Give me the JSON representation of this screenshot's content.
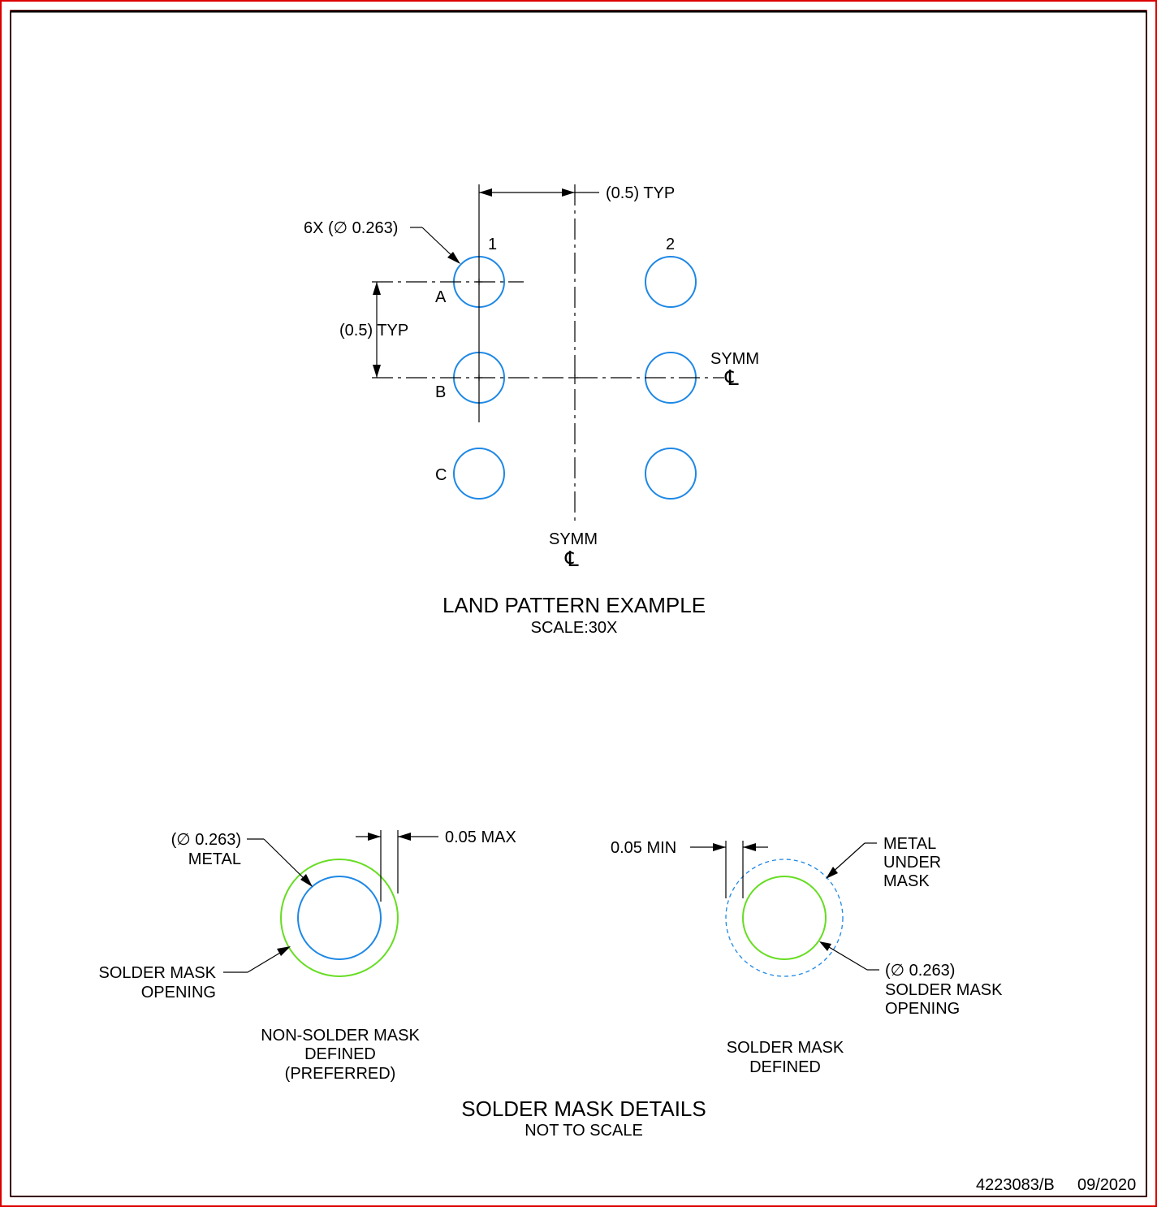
{
  "land_pattern": {
    "title": "LAND PATTERN EXAMPLE",
    "scale": "SCALE:30X",
    "pad_callout": "6X (∅ 0.263)",
    "pitch_x_label": "(0.5) TYP",
    "pitch_y_label": "(0.5) TYP",
    "columns": [
      "1",
      "2"
    ],
    "rows": [
      "A",
      "B",
      "C"
    ],
    "symm_label": "SYMM",
    "centerline_symbol": "℄"
  },
  "solder_mask_details": {
    "title": "SOLDER MASK DETAILS",
    "subtitle": "NOT TO SCALE",
    "nsmd": {
      "metal_line1": "(∅ 0.263)",
      "metal_line2": "METAL",
      "clearance": "0.05 MAX",
      "opening_line1": "SOLDER MASK",
      "opening_line2": "OPENING",
      "caption_line1": "NON-SOLDER MASK",
      "caption_line2": "DEFINED",
      "caption_line3": "(PREFERRED)"
    },
    "smd": {
      "clearance": "0.05 MIN",
      "metal_line1": "METAL",
      "metal_line2": "UNDER",
      "metal_line3": "MASK",
      "opening_line1": "(∅ 0.263)",
      "opening_line2": "SOLDER MASK",
      "opening_line3": "OPENING",
      "caption_line1": "SOLDER MASK",
      "caption_line2": "DEFINED"
    }
  },
  "footer": {
    "doc_number": "4223083/B",
    "date": "09/2020"
  },
  "colors": {
    "border": "#dd0000",
    "pad": "#1e88e5",
    "solder_mask": "#66dd22"
  }
}
